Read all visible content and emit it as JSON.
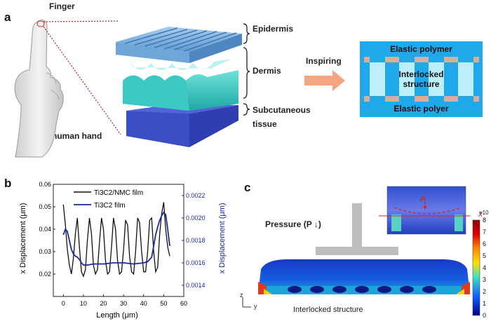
{
  "panel_a": {
    "letter": "a",
    "finger_label": "Finger",
    "hand_label": "human hand",
    "layers": {
      "epidermis": "Epidermis",
      "dermis": "Dermis",
      "subcutaneous_line1": "Subcutaneous",
      "subcutaneous_line2": "tissue"
    },
    "arrow_label": "Inspiring",
    "schematic": {
      "top": "Elastic polymer",
      "middle_line1": "Interlocked",
      "middle_line2": "structure",
      "bottom": "Elastic polyer"
    },
    "colors": {
      "skin_top": "#7fb3df",
      "skin_mid": "#3cc9c4",
      "skin_bottom": "#3a4fc4",
      "schematic_bg": "#1fa8ea",
      "arrow": "#f4a582"
    }
  },
  "panel_b": {
    "letter": "b"
  },
  "panel_c": {
    "letter": "c",
    "pressure_label": "Pressure (P ↓)",
    "inset_p_label": "P",
    "inset_x_label": "x",
    "caption": "Interlocked structure",
    "axis_z": "z",
    "axis_y": "y",
    "colorbar": {
      "ticks": [
        "8",
        "7",
        "6",
        "5",
        "4",
        "3",
        "2",
        "1",
        "0"
      ],
      "multiplier": "×10"
    }
  },
  "chart_data": {
    "type": "line",
    "xlabel": "Length (μm)",
    "ylabel_left": "x Displacement (μm)",
    "ylabel_right": "x Displacement (μm)",
    "xlim": [
      -5,
      60
    ],
    "ylim_left": [
      0.01,
      0.06
    ],
    "ylim_right": [
      0.0013,
      0.0023
    ],
    "x_ticks": [
      "0",
      "10",
      "20",
      "30",
      "40",
      "50",
      "60"
    ],
    "y_ticks_left": [
      "0.02",
      "0.03",
      "0.04",
      "0.05",
      "0.06"
    ],
    "y_ticks_right": [
      "0.0014",
      "0.0016",
      "0.0018",
      "0.0020",
      "0.0022"
    ],
    "legend_position": "top-left",
    "series": [
      {
        "name": "Ti3C2/NMC film",
        "axis": "left",
        "color": "#111111",
        "x": [
          0,
          1,
          2,
          3,
          4,
          5,
          6,
          7,
          8,
          9,
          10,
          11,
          12,
          13,
          14,
          15,
          16,
          17,
          18,
          19,
          20,
          21,
          22,
          23,
          24,
          25,
          26,
          27,
          28,
          29,
          30,
          31,
          32,
          33,
          34,
          35,
          36,
          37,
          38,
          39,
          40,
          41,
          42,
          43,
          44,
          45,
          46,
          47,
          48,
          49,
          50,
          51,
          52,
          53
        ],
        "y": [
          0.051,
          0.042,
          0.031,
          0.024,
          0.02,
          0.027,
          0.038,
          0.045,
          0.032,
          0.021,
          0.019,
          0.022,
          0.035,
          0.045,
          0.038,
          0.024,
          0.02,
          0.022,
          0.034,
          0.045,
          0.04,
          0.026,
          0.02,
          0.021,
          0.032,
          0.045,
          0.04,
          0.026,
          0.02,
          0.021,
          0.031,
          0.044,
          0.042,
          0.028,
          0.021,
          0.02,
          0.03,
          0.045,
          0.043,
          0.03,
          0.021,
          0.021,
          0.03,
          0.044,
          0.045,
          0.03,
          0.021,
          0.023,
          0.038,
          0.047,
          0.052,
          0.04,
          0.032,
          0.028
        ]
      },
      {
        "name": "Ti3C2 film",
        "axis": "right",
        "color": "#1a2a9a",
        "x": [
          0,
          1,
          2,
          3,
          4,
          5,
          6,
          7,
          8,
          9,
          10,
          12,
          15,
          20,
          25,
          30,
          35,
          40,
          42,
          44,
          45,
          46,
          47,
          48,
          49,
          50,
          51,
          52,
          53
        ],
        "y": [
          0.00185,
          0.0019,
          0.00188,
          0.0018,
          0.00172,
          0.00168,
          0.00166,
          0.00165,
          0.00163,
          0.0016,
          0.00158,
          0.00158,
          0.00159,
          0.00159,
          0.0016,
          0.0016,
          0.00159,
          0.0016,
          0.00161,
          0.00165,
          0.00175,
          0.00185,
          0.00192,
          0.00198,
          0.00202,
          0.00205,
          0.00203,
          0.0019,
          0.00175
        ]
      }
    ]
  }
}
